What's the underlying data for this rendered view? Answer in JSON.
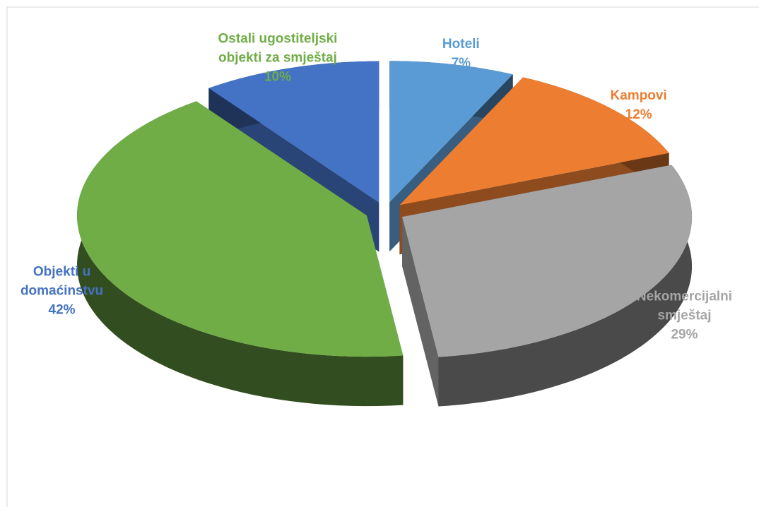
{
  "chart_data": {
    "type": "pie3d",
    "categories": [
      "Hoteli",
      "Kampovi",
      "Nekomercijalni smještaj",
      "Objekti u domaćinstvu",
      "Ostali ugostiteljski objekti za smještaj"
    ],
    "values": [
      7,
      12,
      29,
      42,
      10
    ],
    "value_labels": [
      "7%",
      "12%",
      "29%",
      "42%",
      "10%"
    ],
    "colors": [
      "#5b9bd5",
      "#ed7d31",
      "#a5a5a5",
      "#70ad47",
      "#4472c4"
    ],
    "label_colors": [
      "#5b9bd5",
      "#ed7d31",
      "#a5a5a5",
      "#4472c4",
      "#70ad47"
    ]
  }
}
